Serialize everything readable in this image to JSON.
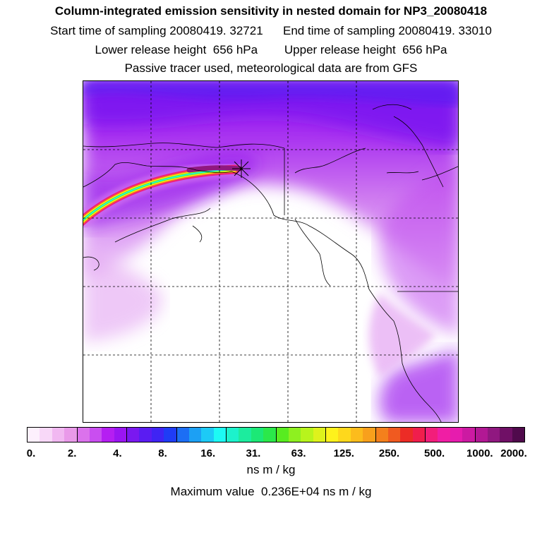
{
  "header": {
    "title": "Column-integrated emission sensitivity in nested domain for NP3_20080418",
    "start_time": "Start time of sampling 20080419. 32721",
    "end_time": "End time of sampling 20080419. 33010",
    "lower_release": "Lower release height  656 hPa",
    "upper_release": "Upper release height  656 hPa",
    "tracer_note": "Passive tracer used, meteorological data are from GFS"
  },
  "colorbar": {
    "colors": [
      "#fdf0fd",
      "#f8d8f8",
      "#f1b8f1",
      "#e99ae9",
      "#db72ec",
      "#c94ef0",
      "#b51ef2",
      "#9a15f2",
      "#7a18f0",
      "#5a1cf2",
      "#3f24f4",
      "#1f3cf6",
      "#1c6ef4",
      "#1ca0f4",
      "#1dcaf6",
      "#1dfaf4",
      "#1cf2cc",
      "#1cec9e",
      "#1ce876",
      "#2be84a",
      "#58ec20",
      "#8ef020",
      "#b8f41c",
      "#def21c",
      "#fef21c",
      "#fed81c",
      "#fcbc1c",
      "#f8a01c",
      "#f4801c",
      "#f05a20",
      "#ec2c26",
      "#f01e4c",
      "#f21e7a",
      "#f01ea4",
      "#e61cae",
      "#cc1aa2",
      "#b21894",
      "#901880",
      "#701066",
      "#500a4c"
    ],
    "tick_labels": [
      "0.",
      "2.",
      "4.",
      "8.",
      "16.",
      "31.",
      "63.",
      "125.",
      "250.",
      "500.",
      "1000.",
      "2000."
    ],
    "unit": "ns m / kg",
    "max_value": "Maximum value  0.236E+04 ns m / kg"
  }
}
